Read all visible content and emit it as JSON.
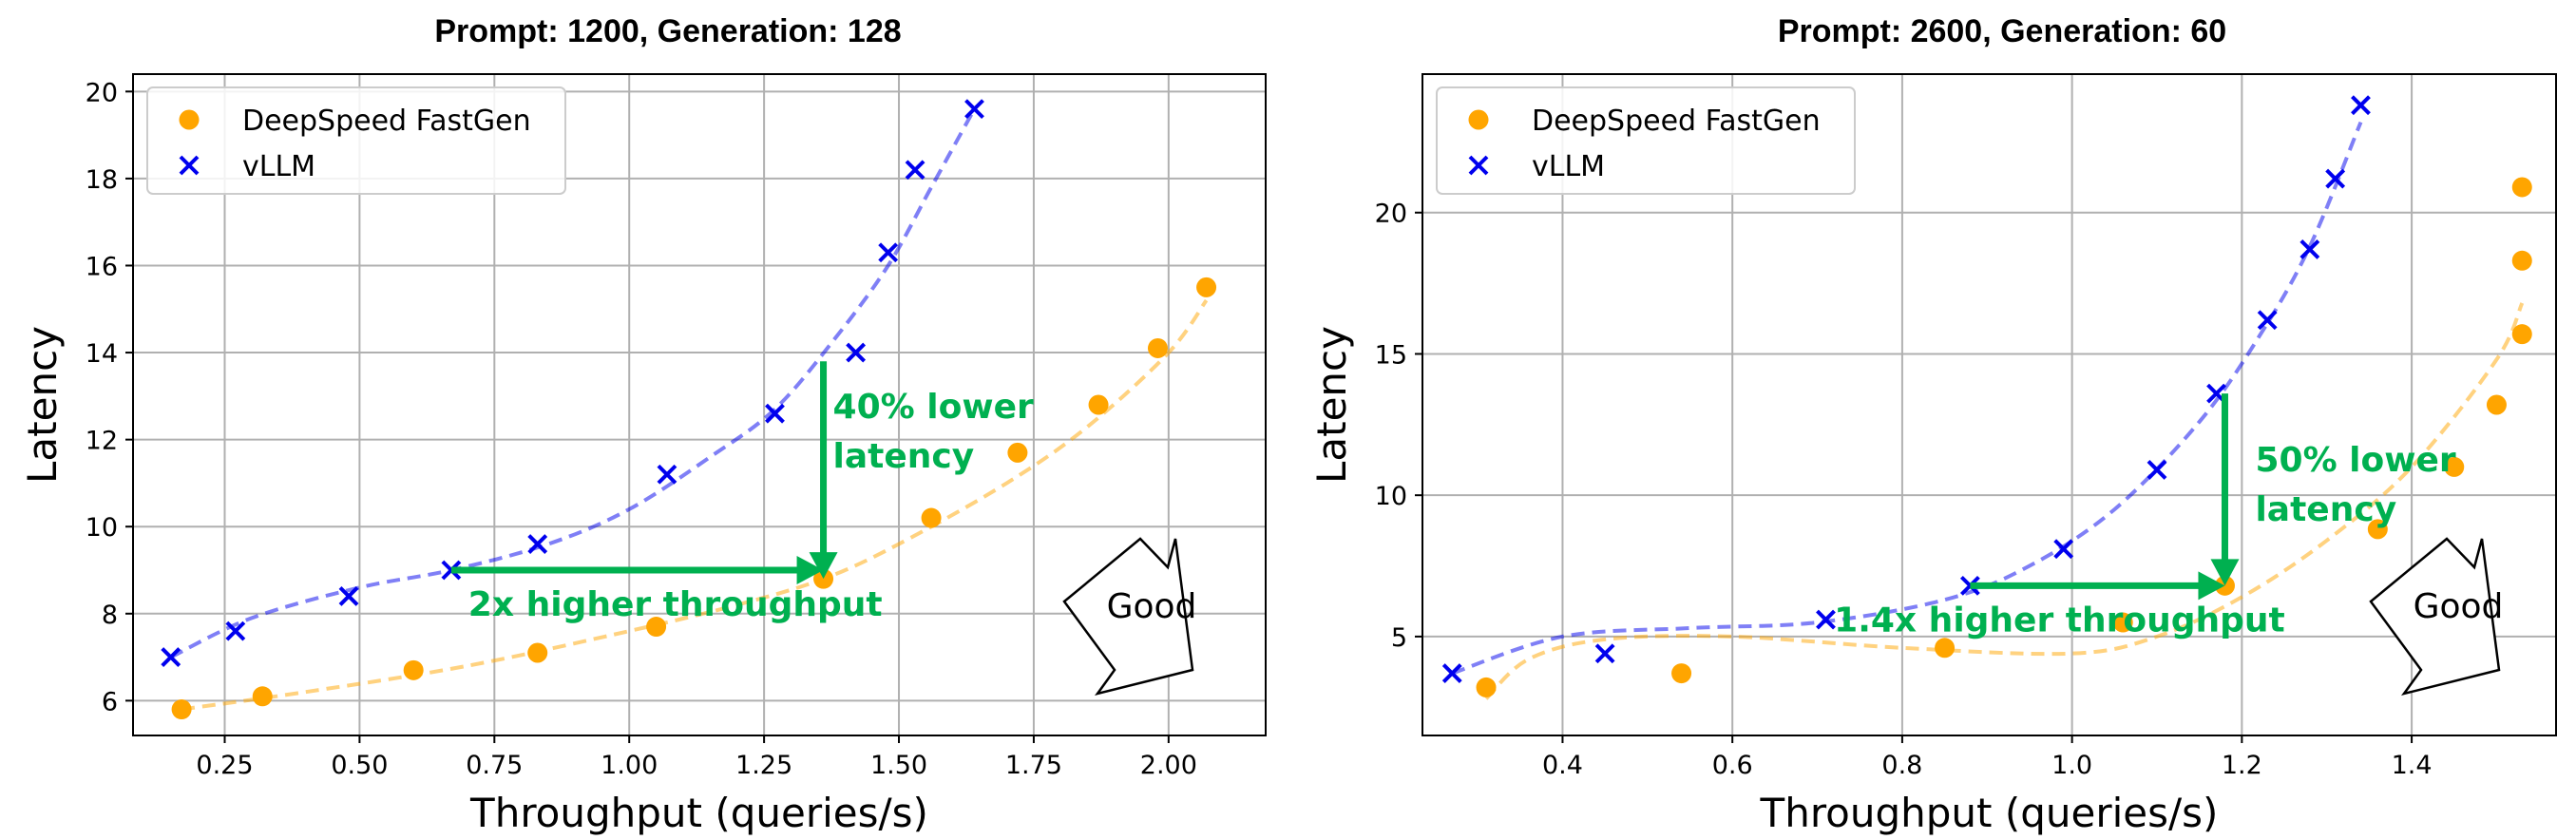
{
  "chart_data": [
    {
      "type": "scatter",
      "title": "Prompt: 1200, Generation: 128",
      "xlabel": "Throughput (queries/s)",
      "ylabel": "Latency",
      "xlim": [
        0.08,
        2.18
      ],
      "ylim": [
        5.2,
        20.4
      ],
      "xticks": [
        0.25,
        0.5,
        0.75,
        1.0,
        1.25,
        1.5,
        1.75,
        2.0
      ],
      "xtick_labels": [
        "0.25",
        "0.50",
        "0.75",
        "1.00",
        "1.25",
        "1.50",
        "1.75",
        "2.00"
      ],
      "yticks": [
        6,
        8,
        10,
        12,
        14,
        16,
        18,
        20
      ],
      "ytick_labels": [
        "6",
        "8",
        "10",
        "12",
        "14",
        "16",
        "18",
        "20"
      ],
      "grid": true,
      "legend_position": "top-left",
      "series": [
        {
          "name": "DeepSpeed FastGen",
          "marker": "circle",
          "color": "#ffa500",
          "x": [
            0.17,
            0.32,
            0.6,
            0.83,
            1.05,
            1.36,
            1.56,
            1.72,
            1.87,
            1.98,
            2.07
          ],
          "y": [
            5.8,
            6.1,
            6.7,
            7.1,
            7.7,
            8.8,
            10.2,
            11.7,
            12.8,
            14.1,
            15.5
          ],
          "trend_x": [
            0.17,
            0.4,
            0.7,
            1.0,
            1.2,
            1.36,
            1.5,
            1.7,
            1.85,
            2.0,
            2.07
          ],
          "trend_y": [
            5.8,
            6.2,
            6.8,
            7.6,
            8.2,
            8.8,
            9.6,
            11.0,
            12.3,
            14.0,
            15.2
          ]
        },
        {
          "name": "vLLM",
          "marker": "x",
          "color": "#0000ee",
          "x": [
            0.15,
            0.27,
            0.48,
            0.67,
            0.83,
            1.07,
            1.27,
            1.42,
            1.48,
            1.53,
            1.64
          ],
          "y": [
            7.0,
            7.6,
            8.4,
            9.0,
            9.6,
            11.2,
            12.6,
            14.0,
            16.3,
            18.2,
            19.6
          ],
          "trend_x": [
            0.15,
            0.3,
            0.5,
            0.67,
            0.85,
            1.0,
            1.15,
            1.27,
            1.38,
            1.48,
            1.56,
            1.64
          ],
          "trend_y": [
            7.0,
            7.9,
            8.6,
            9.0,
            9.6,
            10.4,
            11.6,
            12.7,
            14.3,
            16.0,
            17.8,
            19.6
          ]
        }
      ],
      "annotations": {
        "horizontal_arrow": {
          "from": [
            0.67,
            9.0
          ],
          "to": [
            1.36,
            9.0
          ],
          "label": "2x higher throughput"
        },
        "vertical_arrow": {
          "from": [
            1.36,
            13.8
          ],
          "to": [
            1.36,
            8.8
          ],
          "label_lines": [
            "40% lower",
            "latency"
          ]
        },
        "badge": "Good"
      }
    },
    {
      "type": "scatter",
      "title": "Prompt: 2600, Generation: 60",
      "xlabel": "Throughput (queries/s)",
      "ylabel": "Latency",
      "xlim": [
        0.235,
        1.57
      ],
      "ylim": [
        1.5,
        24.9
      ],
      "xticks": [
        0.4,
        0.6,
        0.8,
        1.0,
        1.2,
        1.4
      ],
      "xtick_labels": [
        "0.4",
        "0.6",
        "0.8",
        "1.0",
        "1.2",
        "1.4"
      ],
      "yticks": [
        5,
        10,
        15,
        20
      ],
      "ytick_labels": [
        "5",
        "10",
        "15",
        "20"
      ],
      "grid": true,
      "legend_position": "top-left",
      "series": [
        {
          "name": "DeepSpeed FastGen",
          "marker": "circle",
          "color": "#ffa500",
          "x": [
            0.31,
            0.54,
            0.85,
            1.06,
            1.18,
            1.36,
            1.45,
            1.5,
            1.53,
            1.53,
            1.53
          ],
          "y": [
            3.2,
            3.7,
            4.6,
            5.5,
            6.8,
            8.8,
            11.0,
            13.2,
            15.7,
            18.3,
            20.9
          ],
          "trend_x": [
            0.31,
            0.36,
            0.45,
            0.6,
            0.8,
            1.0,
            1.1,
            1.2,
            1.3,
            1.4,
            1.5,
            1.53
          ],
          "trend_y": [
            2.8,
            4.2,
            4.9,
            5.0,
            4.6,
            4.4,
            5.0,
            6.4,
            8.4,
            11.0,
            14.8,
            16.8
          ]
        },
        {
          "name": "vLLM",
          "marker": "x",
          "color": "#0000ee",
          "x": [
            0.27,
            0.45,
            0.71,
            0.88,
            0.99,
            1.1,
            1.17,
            1.23,
            1.28,
            1.31,
            1.34
          ],
          "y": [
            3.7,
            4.4,
            5.6,
            6.8,
            8.1,
            10.9,
            13.6,
            16.2,
            18.7,
            21.2,
            23.8
          ],
          "trend_x": [
            0.27,
            0.4,
            0.55,
            0.7,
            0.85,
            0.95,
            1.05,
            1.15,
            1.22,
            1.28,
            1.34
          ],
          "trend_y": [
            3.7,
            5.0,
            5.3,
            5.5,
            6.3,
            7.5,
            9.5,
            12.6,
            15.6,
            18.8,
            23.2
          ]
        }
      ],
      "annotations": {
        "horizontal_arrow": {
          "from": [
            0.88,
            6.8
          ],
          "to": [
            1.18,
            6.8
          ],
          "label": "1.4x higher throughput"
        },
        "vertical_arrow": {
          "from": [
            1.18,
            13.6
          ],
          "to": [
            1.18,
            6.8
          ],
          "label_lines": [
            "50% lower",
            "latency"
          ]
        },
        "badge": "Good"
      }
    }
  ]
}
